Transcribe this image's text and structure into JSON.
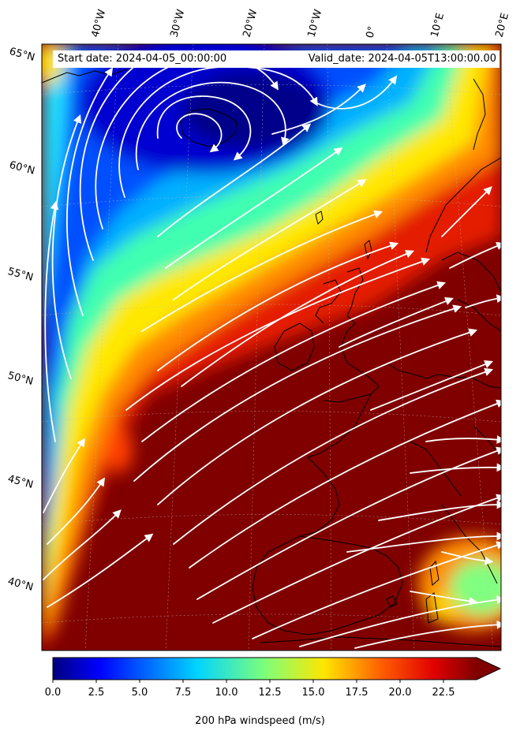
{
  "banner": {
    "start": "Start date: 2024-04-05_00:00:00",
    "valid": "Valid_date: 2024-04-05T13:00:00.00"
  },
  "longitudes": [
    "40°W",
    "30°W",
    "20°W",
    "10°W",
    "0°",
    "10°E",
    "20°E"
  ],
  "latitudes": [
    "65°N",
    "60°N",
    "55°N",
    "50°N",
    "45°N",
    "40°N"
  ],
  "colorbar": {
    "title": "200 hPa windspeed (m/s)",
    "ticks": [
      "0.0",
      "2.5",
      "5.0",
      "7.5",
      "10.0",
      "12.5",
      "15.0",
      "17.5",
      "20.0",
      "22.5"
    ],
    "range": [
      0,
      25
    ],
    "extend": "max",
    "colormap": "jet"
  },
  "colors": {
    "max_wind": "#800000",
    "min_wind": "#00007f",
    "streamline": "#ffffff",
    "coastline": "#000000"
  }
}
